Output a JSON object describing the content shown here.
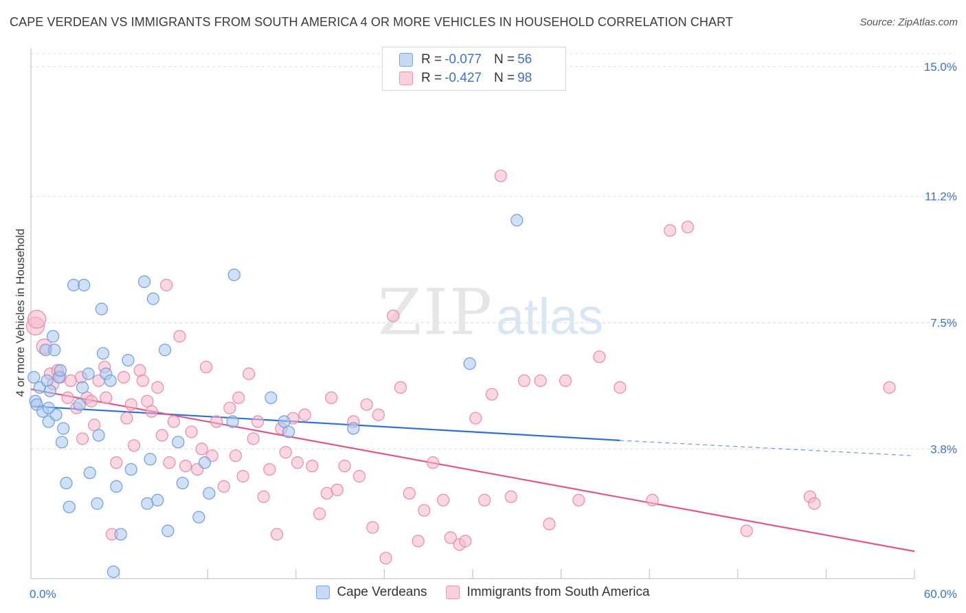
{
  "header": {
    "title": "CAPE VERDEAN VS IMMIGRANTS FROM SOUTH AMERICA 4 OR MORE VEHICLES IN HOUSEHOLD CORRELATION CHART",
    "source": "Source: ZipAtlas.com"
  },
  "watermark": {
    "zip": "ZIP",
    "atlas": "atlas"
  },
  "legend": {
    "rows": [
      {
        "r_label": "R =",
        "r_value": "-0.077",
        "n_label": "N =",
        "n_value": "56"
      },
      {
        "r_label": "R =",
        "r_value": "-0.427",
        "n_label": "N =",
        "n_value": "98"
      }
    ]
  },
  "bottom_legend": {
    "items": [
      {
        "label": "Cape Verdeans"
      },
      {
        "label": "Immigrants from South America"
      }
    ]
  },
  "colors": {
    "blue_fill": "#a9c6ef",
    "blue_stroke": "#6d9ee0",
    "blue_line": "#2f6fd0",
    "pink_fill": "#f6b6cb",
    "pink_stroke": "#eb8aa8",
    "pink_line": "#e0558a",
    "tick_label": "#3d72c8",
    "grid": "#dcdcdc"
  },
  "chart_data": {
    "type": "scatter",
    "title": "CAPE VERDEAN VS IMMIGRANTS FROM SOUTH AMERICA 4 OR MORE VEHICLES IN HOUSEHOLD CORRELATION CHART",
    "xlabel": "",
    "ylabel": "4 or more Vehicles in Household",
    "xlim": [
      0,
      60
    ],
    "ylim": [
      0,
      15.5
    ],
    "x_tick_labels": [
      "0.0%",
      "60.0%"
    ],
    "y_ticks": [
      3.8,
      7.5,
      11.2,
      15.0
    ],
    "y_tick_labels": [
      "3.8%",
      "7.5%",
      "11.2%",
      "15.0%"
    ],
    "grid": true,
    "legend_placement": "top-center",
    "series": [
      {
        "name": "Cape Verdeans",
        "color": "#a9c6ef",
        "trend": {
          "x": [
            0,
            40
          ],
          "y": [
            5.05,
            4.05
          ],
          "dashed_extension_to": [
            60,
            3.6
          ]
        },
        "points": [
          [
            0.2,
            5.9
          ],
          [
            0.3,
            5.2
          ],
          [
            0.4,
            5.1
          ],
          [
            0.6,
            5.6
          ],
          [
            0.8,
            4.9
          ],
          [
            1.0,
            6.7
          ],
          [
            1.1,
            5.8
          ],
          [
            1.2,
            4.6
          ],
          [
            1.3,
            5.5
          ],
          [
            1.5,
            7.1
          ],
          [
            1.6,
            6.7
          ],
          [
            1.7,
            4.8
          ],
          [
            1.9,
            5.9
          ],
          [
            2.0,
            6.1
          ],
          [
            2.1,
            4.0
          ],
          [
            2.2,
            4.4
          ],
          [
            2.4,
            2.8
          ],
          [
            2.6,
            2.1
          ],
          [
            2.9,
            8.6
          ],
          [
            3.3,
            5.1
          ],
          [
            3.5,
            5.6
          ],
          [
            3.6,
            8.6
          ],
          [
            3.9,
            6.0
          ],
          [
            4.0,
            3.1
          ],
          [
            4.5,
            2.2
          ],
          [
            4.6,
            4.2
          ],
          [
            4.8,
            7.9
          ],
          [
            4.9,
            6.6
          ],
          [
            5.1,
            6.0
          ],
          [
            5.4,
            5.8
          ],
          [
            5.6,
            0.2
          ],
          [
            5.8,
            2.7
          ],
          [
            6.1,
            1.3
          ],
          [
            6.6,
            6.4
          ],
          [
            6.8,
            3.2
          ],
          [
            7.7,
            8.7
          ],
          [
            7.9,
            2.2
          ],
          [
            8.1,
            3.5
          ],
          [
            8.3,
            8.2
          ],
          [
            8.6,
            2.3
          ],
          [
            9.1,
            6.7
          ],
          [
            9.3,
            1.4
          ],
          [
            10.0,
            4.0
          ],
          [
            10.3,
            2.8
          ],
          [
            11.4,
            1.8
          ],
          [
            11.8,
            3.4
          ],
          [
            12.1,
            2.5
          ],
          [
            13.7,
            4.6
          ],
          [
            13.8,
            8.9
          ],
          [
            16.3,
            5.3
          ],
          [
            17.2,
            4.6
          ],
          [
            17.5,
            4.3
          ],
          [
            21.9,
            4.4
          ],
          [
            29.8,
            6.3
          ],
          [
            33.0,
            10.5
          ],
          [
            1.2,
            5.0
          ]
        ]
      },
      {
        "name": "Immigrants from South America",
        "color": "#f6b6cb",
        "trend": {
          "x": [
            0,
            60
          ],
          "y": [
            5.55,
            0.8
          ]
        },
        "points": [
          [
            0.3,
            7.4
          ],
          [
            0.4,
            7.6
          ],
          [
            0.9,
            6.8
          ],
          [
            1.3,
            6.0
          ],
          [
            1.5,
            5.7
          ],
          [
            1.8,
            6.1
          ],
          [
            2.0,
            5.9
          ],
          [
            2.5,
            5.3
          ],
          [
            2.7,
            5.8
          ],
          [
            3.1,
            5.0
          ],
          [
            3.4,
            5.9
          ],
          [
            3.5,
            4.1
          ],
          [
            3.8,
            5.3
          ],
          [
            4.1,
            5.2
          ],
          [
            4.3,
            4.5
          ],
          [
            4.6,
            5.8
          ],
          [
            5.0,
            6.2
          ],
          [
            5.1,
            5.3
          ],
          [
            5.5,
            1.3
          ],
          [
            5.8,
            3.4
          ],
          [
            6.3,
            5.9
          ],
          [
            6.5,
            4.7
          ],
          [
            6.8,
            5.1
          ],
          [
            7.0,
            3.9
          ],
          [
            7.4,
            6.1
          ],
          [
            7.6,
            5.8
          ],
          [
            7.9,
            5.2
          ],
          [
            8.2,
            4.9
          ],
          [
            8.6,
            5.6
          ],
          [
            8.9,
            4.2
          ],
          [
            9.2,
            8.6
          ],
          [
            9.4,
            3.4
          ],
          [
            9.7,
            4.6
          ],
          [
            10.1,
            7.1
          ],
          [
            10.5,
            3.3
          ],
          [
            10.9,
            4.3
          ],
          [
            11.3,
            3.2
          ],
          [
            11.6,
            3.8
          ],
          [
            11.9,
            6.2
          ],
          [
            12.3,
            3.6
          ],
          [
            12.6,
            4.6
          ],
          [
            13.1,
            2.7
          ],
          [
            13.5,
            5.0
          ],
          [
            13.9,
            3.6
          ],
          [
            14.1,
            5.3
          ],
          [
            14.4,
            3.0
          ],
          [
            14.8,
            6.0
          ],
          [
            15.1,
            4.1
          ],
          [
            15.4,
            4.6
          ],
          [
            15.8,
            2.4
          ],
          [
            16.2,
            3.2
          ],
          [
            16.7,
            1.3
          ],
          [
            17.0,
            4.4
          ],
          [
            17.3,
            3.7
          ],
          [
            17.8,
            4.7
          ],
          [
            18.1,
            3.4
          ],
          [
            18.6,
            4.8
          ],
          [
            19.1,
            3.3
          ],
          [
            19.6,
            1.9
          ],
          [
            20.1,
            2.5
          ],
          [
            20.4,
            5.3
          ],
          [
            20.8,
            2.6
          ],
          [
            21.3,
            3.3
          ],
          [
            21.9,
            4.6
          ],
          [
            22.3,
            3.0
          ],
          [
            22.8,
            5.1
          ],
          [
            23.2,
            1.5
          ],
          [
            23.6,
            4.8
          ],
          [
            24.1,
            0.6
          ],
          [
            24.6,
            7.7
          ],
          [
            25.1,
            5.6
          ],
          [
            25.7,
            2.5
          ],
          [
            26.3,
            1.1
          ],
          [
            26.7,
            2.0
          ],
          [
            27.3,
            3.4
          ],
          [
            28.0,
            2.3
          ],
          [
            28.5,
            1.2
          ],
          [
            29.1,
            1.0
          ],
          [
            29.5,
            1.1
          ],
          [
            30.2,
            4.7
          ],
          [
            30.8,
            2.3
          ],
          [
            31.3,
            5.4
          ],
          [
            31.9,
            11.8
          ],
          [
            32.6,
            2.4
          ],
          [
            33.5,
            5.8
          ],
          [
            34.6,
            5.8
          ],
          [
            35.2,
            1.6
          ],
          [
            36.3,
            5.8
          ],
          [
            37.2,
            2.3
          ],
          [
            38.6,
            6.5
          ],
          [
            40.0,
            5.6
          ],
          [
            42.2,
            2.3
          ],
          [
            43.4,
            10.2
          ],
          [
            44.6,
            10.3
          ],
          [
            48.6,
            1.4
          ],
          [
            52.9,
            2.4
          ],
          [
            53.2,
            2.2
          ],
          [
            58.3,
            5.6
          ]
        ]
      }
    ]
  }
}
